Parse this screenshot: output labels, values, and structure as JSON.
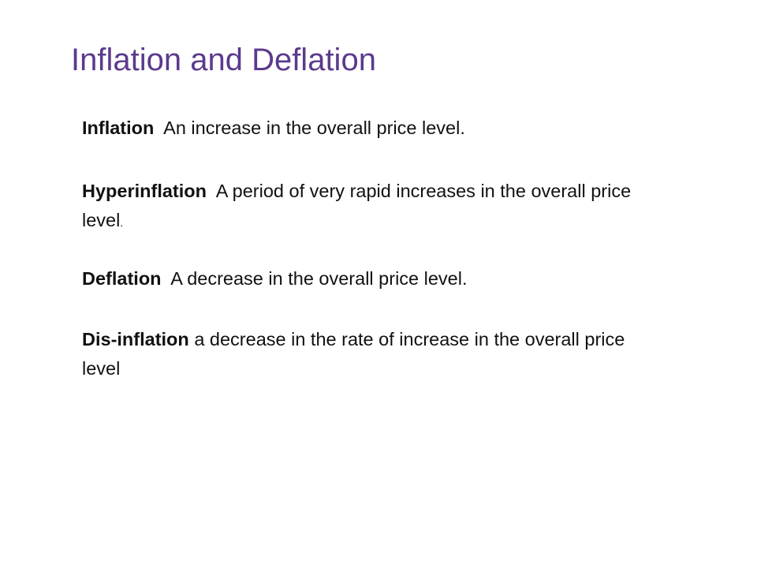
{
  "slide": {
    "title": "Inflation and Deflation",
    "definitions": [
      {
        "term": "Inflation",
        "text": "An increase in the overall price level."
      },
      {
        "term": "Hyperinflation",
        "text": "A period of very rapid increases in the overall price level",
        "trailing": "."
      },
      {
        "term": "Deflation",
        "text": "A decrease in the overall price level."
      },
      {
        "term": "Dis-inflation",
        "text": "a decrease in the rate of increase in the overall price level"
      }
    ]
  }
}
